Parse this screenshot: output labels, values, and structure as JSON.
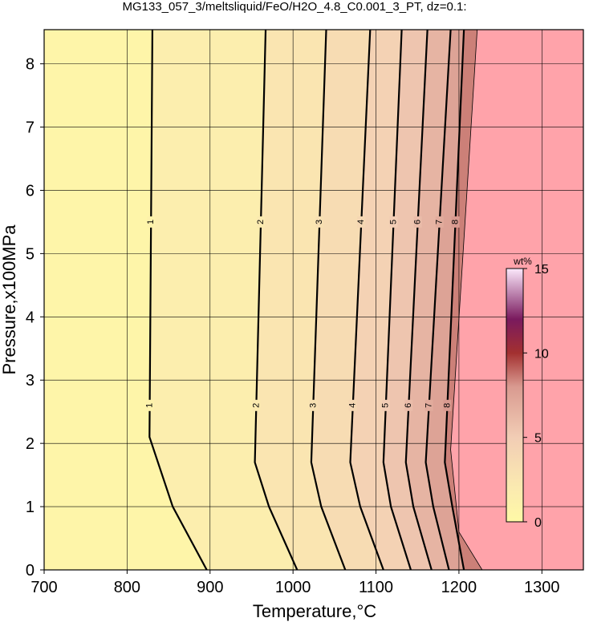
{
  "chart_data": {
    "type": "contour",
    "title": "MG133_057_3/meltsliquid/FeO/H2O_4.8_C0.001_3_PT, dz=0.1:",
    "x_label": "Temperature,°C",
    "y_label": "Pressure,x100MPa",
    "xlim": [
      700,
      1350
    ],
    "xticks": [
      700,
      800,
      900,
      1000,
      1100,
      1200,
      1300
    ],
    "ylim": [
      0,
      8.54
    ],
    "yticks": [
      0,
      1,
      2,
      3,
      4,
      5,
      6,
      7,
      8
    ],
    "grid": true,
    "line_color": "#000000",
    "nodata_color": "#ffa3aa",
    "series": [
      {
        "name": "1",
        "x": [
          896,
          855,
          827,
          830.5
        ],
        "values": [
          0,
          1,
          2.1,
          8.54
        ]
      },
      {
        "name": "2",
        "x": [
          1005,
          971,
          954,
          967
        ],
        "values": [
          0,
          1,
          1.7,
          8.54
        ]
      },
      {
        "name": "3",
        "x": [
          1063,
          1034,
          1022,
          1040
        ],
        "values": [
          0,
          1,
          1.7,
          8.54
        ]
      },
      {
        "name": "4",
        "x": [
          1109,
          1081,
          1069,
          1093
        ],
        "values": [
          0,
          1,
          1.7,
          8.54
        ]
      },
      {
        "name": "5",
        "x": [
          1142,
          1118,
          1109,
          1131
        ],
        "values": [
          0,
          1,
          1.7,
          8.54
        ]
      },
      {
        "name": "6",
        "x": [
          1167,
          1145,
          1136,
          1162
        ],
        "values": [
          0,
          1,
          1.7,
          8.54
        ]
      },
      {
        "name": "7",
        "x": [
          1188,
          1169,
          1160,
          1190
        ],
        "values": [
          0,
          1,
          1.7,
          8.54
        ]
      },
      {
        "name": "8",
        "x": [
          1206,
          1192,
          1183,
          1206
        ],
        "values": [
          0,
          1,
          1.7,
          8.54
        ]
      }
    ],
    "boundary": {
      "x": [
        1228,
        1200,
        1190,
        1222
      ],
      "values": [
        0,
        0.6,
        1.9,
        8.54
      ]
    },
    "colorbar": {
      "label": "wt%",
      "lim": [
        0,
        15
      ],
      "ticks": [
        0,
        5,
        10,
        15
      ],
      "stops": [
        0,
        2,
        5,
        8,
        10,
        12,
        15
      ],
      "colors": [
        "#fff9a6",
        "#fbeab0",
        "#f2cdb5",
        "#d99a90",
        "#a33030",
        "#7a1a5e",
        "#fbe8fb"
      ]
    }
  }
}
